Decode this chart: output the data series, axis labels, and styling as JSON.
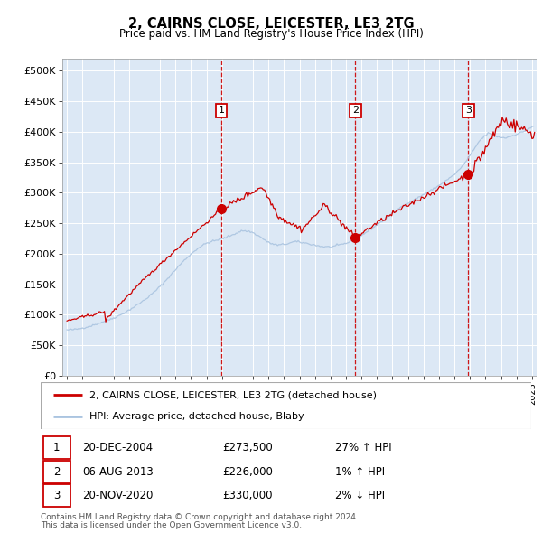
{
  "title": "2, CAIRNS CLOSE, LEICESTER, LE3 2TG",
  "subtitle": "Price paid vs. HM Land Registry's House Price Index (HPI)",
  "legend_line1": "2, CAIRNS CLOSE, LEICESTER, LE3 2TG (detached house)",
  "legend_line2": "HPI: Average price, detached house, Blaby",
  "transactions": [
    {
      "label": "1",
      "date": "20-DEC-2004",
      "price": 273500,
      "pct": "27%",
      "dir": "↑",
      "year": 2004.97
    },
    {
      "label": "2",
      "date": "06-AUG-2013",
      "price": 226000,
      "pct": "1%",
      "dir": "↑",
      "year": 2013.6
    },
    {
      "label": "3",
      "date": "20-NOV-2020",
      "price": 330000,
      "pct": "2%",
      "dir": "↓",
      "year": 2020.89
    }
  ],
  "footnote1": "Contains HM Land Registry data © Crown copyright and database right 2024.",
  "footnote2": "This data is licensed under the Open Government Licence v3.0.",
  "hpi_color": "#aac4e0",
  "price_color": "#cc0000",
  "vline_color": "#cc0000",
  "plot_bg": "#dce8f5",
  "ylim": [
    0,
    520000
  ],
  "yticks": [
    0,
    50000,
    100000,
    150000,
    200000,
    250000,
    300000,
    350000,
    400000,
    450000,
    500000
  ],
  "xlim_start": 1994.7,
  "xlim_end": 2025.3
}
